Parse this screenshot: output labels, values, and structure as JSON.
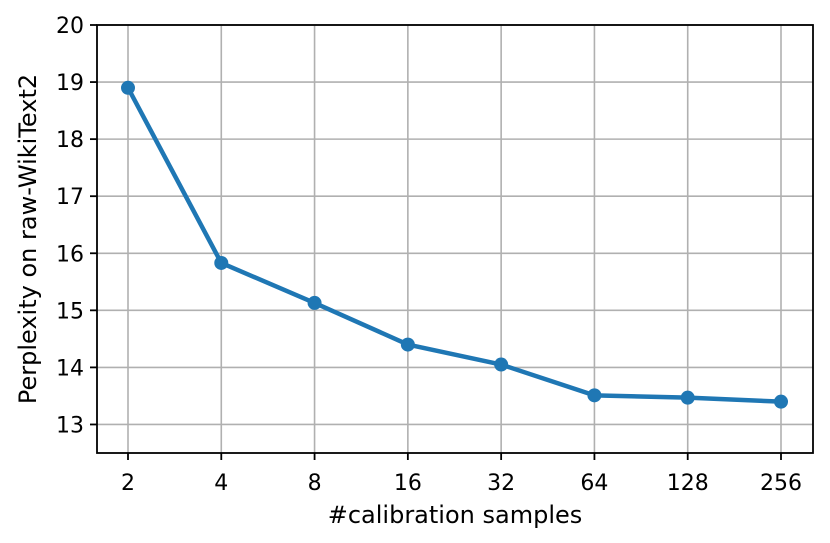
{
  "chart_data": {
    "type": "line",
    "title": "",
    "xlabel": "#calibration samples",
    "ylabel": "Perplexity on raw-WikiText2",
    "categories": [
      "2",
      "4",
      "8",
      "16",
      "32",
      "64",
      "128",
      "256"
    ],
    "yticks": [
      "13",
      "14",
      "15",
      "16",
      "17",
      "18",
      "19",
      "20"
    ],
    "ylim": [
      12.5,
      20
    ],
    "grid": true,
    "series": [
      {
        "color": "#1f77b4",
        "values": [
          18.9,
          15.83,
          15.13,
          14.4,
          14.05,
          13.51,
          13.47,
          13.4
        ]
      }
    ]
  }
}
